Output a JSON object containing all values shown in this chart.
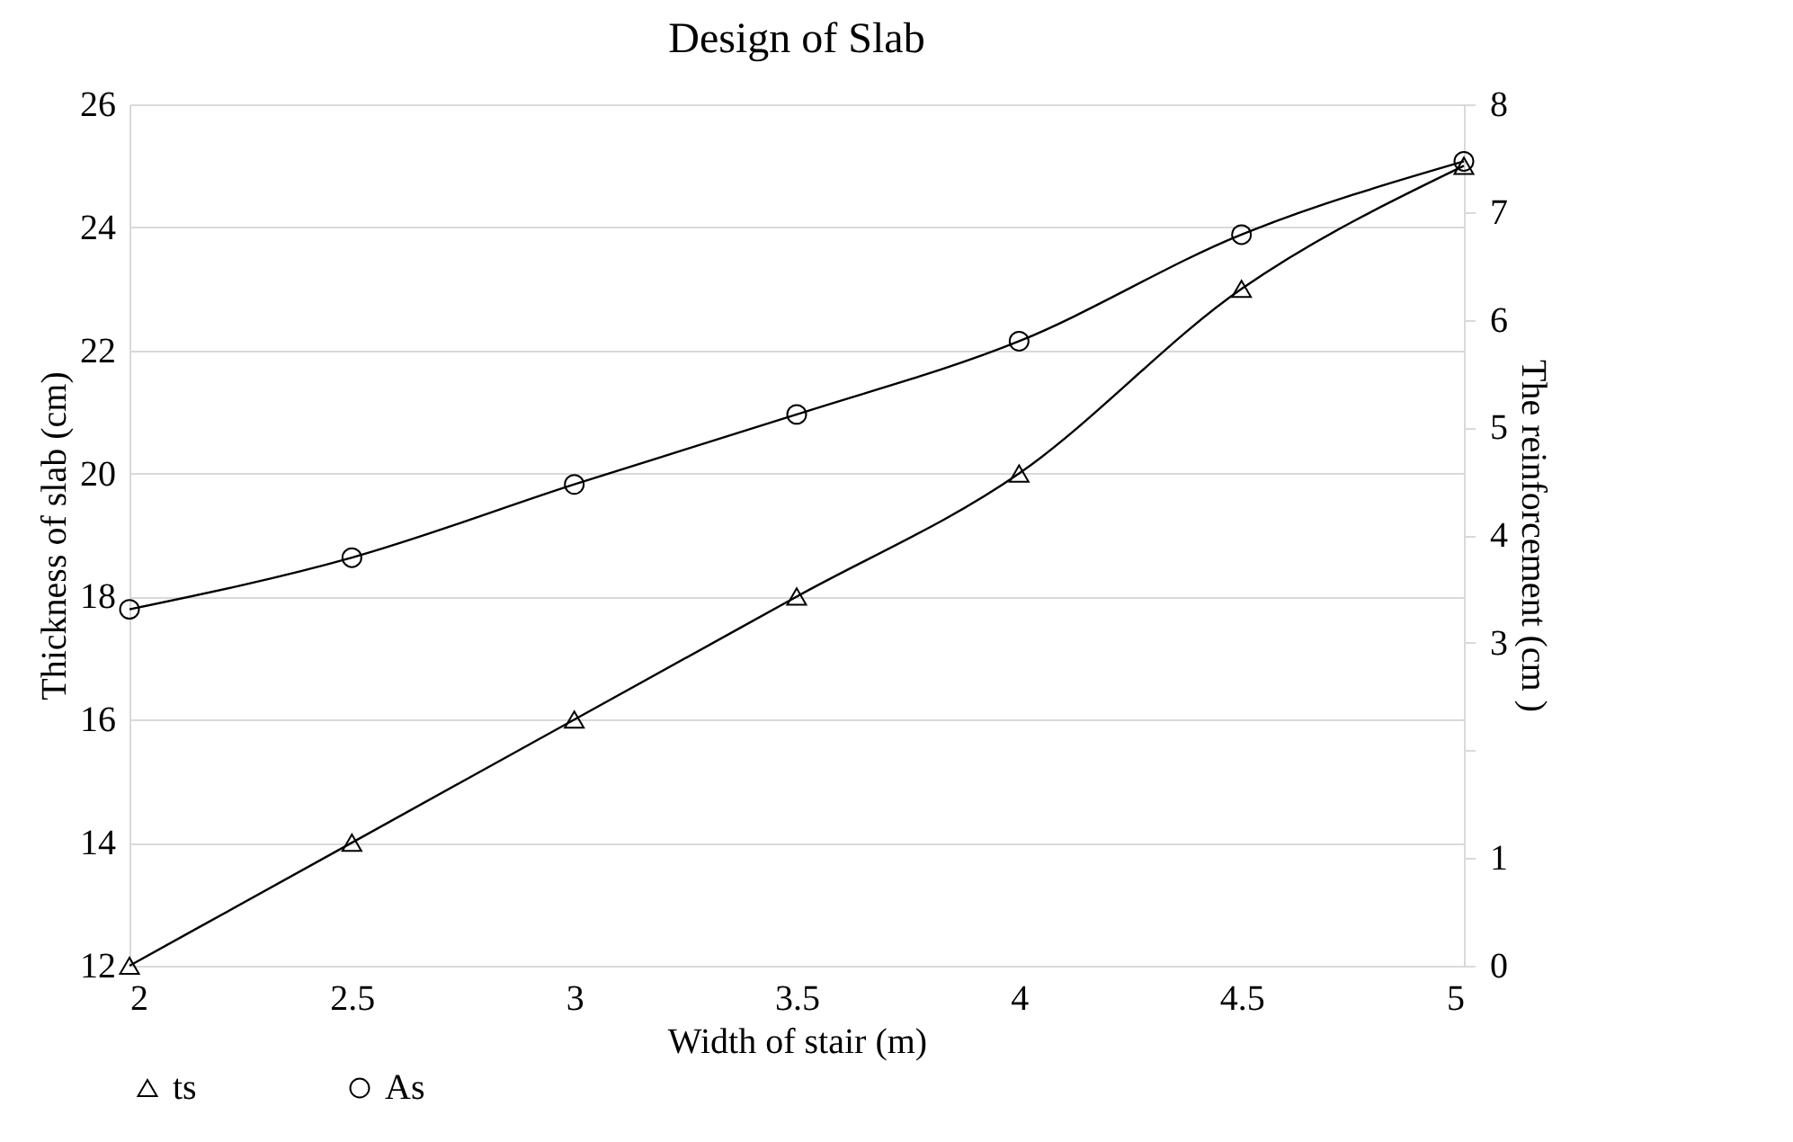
{
  "chart_data": {
    "type": "line",
    "title": "Design of Slab",
    "xlabel": "Width of stair (m)",
    "ylabel": "Thickness of slab (cm)",
    "y2label": "The reinforcement (cm )",
    "x": [
      2,
      2.5,
      3,
      3.5,
      4,
      4.5,
      5
    ],
    "series": [
      {
        "name": "ts",
        "color": "#000000",
        "marker": "triangle",
        "values": [
          12,
          14,
          16,
          18,
          20,
          23,
          25
        ]
      },
      {
        "name": "As",
        "color": "#000000",
        "marker": "circle",
        "axis": "y2",
        "values": [
          3.31,
          3.79,
          4.47,
          5.12,
          5.8,
          6.79,
          7.47
        ]
      }
    ],
    "xlim": [
      2,
      5
    ],
    "xticks": [
      2,
      2.5,
      3,
      3.5,
      4,
      4.5,
      5
    ],
    "ylim": [
      12,
      26
    ],
    "yticks": [
      12,
      14,
      16,
      18,
      20,
      22,
      24,
      26
    ],
    "y2lim": [
      0,
      8
    ],
    "y2ticks": [
      0,
      1,
      {
        "value": 2,
        "label": null
      },
      3,
      4,
      5,
      6,
      7,
      8
    ],
    "grid": "y",
    "legend": "bottom",
    "line_style": "solid"
  }
}
